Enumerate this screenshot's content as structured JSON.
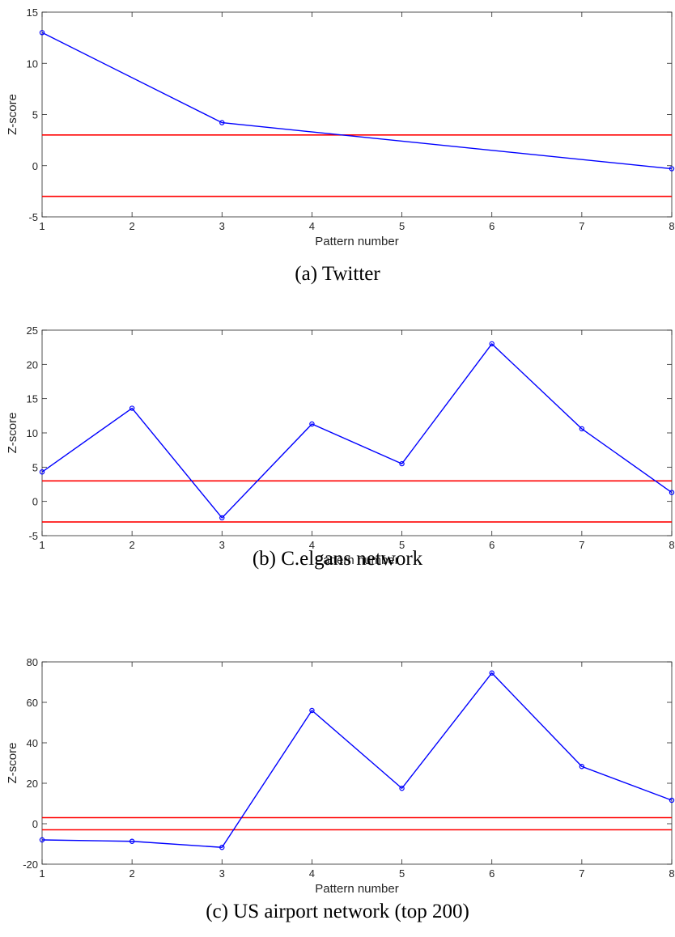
{
  "chart_data": [
    {
      "type": "line",
      "caption": "(a) Twitter",
      "xlabel": "Pattern number",
      "ylabel": "Z-score",
      "xlim": [
        1,
        8
      ],
      "ylim": [
        -5,
        15
      ],
      "xticks": [
        1,
        2,
        3,
        4,
        5,
        6,
        7,
        8
      ],
      "yticks": [
        -5,
        0,
        5,
        10,
        15
      ],
      "x": [
        1,
        3,
        8
      ],
      "values": [
        13.0,
        4.2,
        -0.3
      ],
      "thresholds": [
        3,
        -3
      ],
      "line_color": "#0000ff",
      "threshold_color": "#ff0000",
      "grid": false
    },
    {
      "type": "line",
      "caption": "(b) C.elgans network",
      "xlabel": "Pattern number",
      "ylabel": "Z-score",
      "xlim": [
        1,
        8
      ],
      "ylim": [
        -5,
        25
      ],
      "xticks": [
        1,
        2,
        3,
        4,
        5,
        6,
        7,
        8
      ],
      "yticks": [
        -5,
        0,
        5,
        10,
        15,
        20,
        25
      ],
      "x": [
        1,
        2,
        3,
        4,
        5,
        6,
        7,
        8
      ],
      "values": [
        4.3,
        13.6,
        -2.4,
        11.3,
        5.5,
        23.0,
        10.6,
        1.3
      ],
      "thresholds": [
        3,
        -3
      ],
      "line_color": "#0000ff",
      "threshold_color": "#ff0000",
      "grid": false
    },
    {
      "type": "line",
      "caption": "(c) US airport network (top 200)",
      "xlabel": "Pattern number",
      "ylabel": "Z-score",
      "xlim": [
        1,
        8
      ],
      "ylim": [
        -20,
        80
      ],
      "xticks": [
        1,
        2,
        3,
        4,
        5,
        6,
        7,
        8
      ],
      "yticks": [
        -20,
        0,
        20,
        40,
        60,
        80
      ],
      "x": [
        1,
        2,
        3,
        4,
        5,
        6,
        7,
        8
      ],
      "values": [
        -8.0,
        -8.7,
        -11.7,
        56.0,
        17.5,
        74.5,
        28.3,
        11.6
      ],
      "thresholds": [
        3,
        -3
      ],
      "line_color": "#0000ff",
      "threshold_color": "#ff0000",
      "grid": false
    }
  ]
}
